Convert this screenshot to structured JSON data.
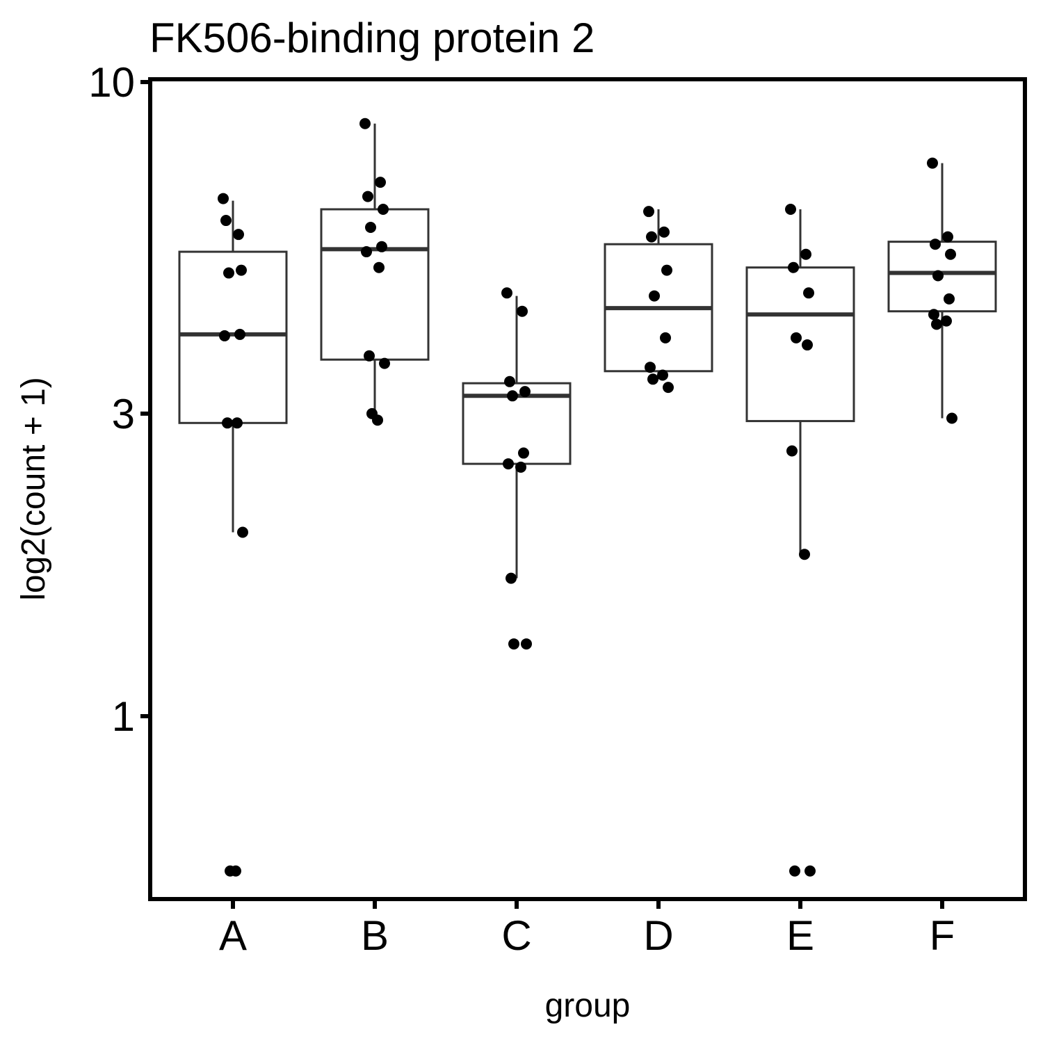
{
  "chart_data": {
    "type": "box",
    "title": "FK506-binding protein 2",
    "xlabel": "group",
    "ylabel": "log2(count + 1)",
    "y_scale": "log10",
    "ylim": [
      0.5,
      10
    ],
    "y_ticks": [
      1,
      3,
      10
    ],
    "y_tick_labels": [
      "1",
      "3",
      "10"
    ],
    "categories": [
      "A",
      "B",
      "C",
      "D",
      "E",
      "F"
    ],
    "grid": false,
    "legend": "none",
    "colors": {
      "box_line": "#333333",
      "point": "#000000",
      "axis": "#000000"
    },
    "boxes": [
      {
        "group": "A",
        "q1": 2.9,
        "median": 4.0,
        "q3": 5.4,
        "whisker_low": 1.95,
        "whisker_high": 6.5
      },
      {
        "group": "B",
        "q1": 3.65,
        "median": 5.45,
        "q3": 6.3,
        "whisker_low": 2.95,
        "whisker_high": 8.6
      },
      {
        "group": "C",
        "q1": 2.5,
        "median": 3.2,
        "q3": 3.35,
        "whisker_low": 1.65,
        "whisker_high": 4.6
      },
      {
        "group": "D",
        "q1": 3.5,
        "median": 4.4,
        "q3": 5.55,
        "whisker_low": 3.4,
        "whisker_high": 6.3
      },
      {
        "group": "E",
        "q1": 2.92,
        "median": 4.3,
        "q3": 5.1,
        "whisker_low": 1.8,
        "whisker_high": 6.3
      },
      {
        "group": "F",
        "q1": 4.35,
        "median": 5.0,
        "q3": 5.6,
        "whisker_low": 2.95,
        "whisker_high": 7.45
      }
    ],
    "points": [
      {
        "group": "A",
        "values": [
          6.55,
          5.75,
          6.05,
          5.05,
          5.0,
          4.0,
          3.98,
          2.9,
          2.9,
          1.95,
          0.57,
          0.57
        ]
      },
      {
        "group": "B",
        "values": [
          8.6,
          6.95,
          6.6,
          6.3,
          5.9,
          5.5,
          5.4,
          5.1,
          3.7,
          3.6,
          3.0,
          2.93
        ]
      },
      {
        "group": "C",
        "values": [
          4.65,
          4.35,
          3.37,
          3.25,
          3.2,
          2.6,
          2.5,
          2.47,
          1.65,
          1.3,
          1.3
        ]
      },
      {
        "group": "D",
        "values": [
          6.25,
          5.8,
          5.7,
          5.05,
          4.6,
          3.95,
          3.55,
          3.45,
          3.4,
          3.3
        ]
      },
      {
        "group": "E",
        "values": [
          6.3,
          5.35,
          5.1,
          4.65,
          3.95,
          3.85,
          2.62,
          1.8,
          0.57,
          0.57
        ]
      },
      {
        "group": "F",
        "values": [
          7.45,
          5.7,
          5.55,
          5.35,
          4.95,
          4.55,
          4.3,
          4.2,
          4.15,
          2.95
        ]
      }
    ]
  }
}
